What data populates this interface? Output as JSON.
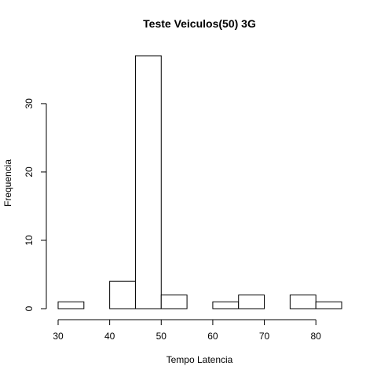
{
  "chart_data": {
    "type": "bar",
    "title": "Teste Veiculos(50) 3G",
    "xlabel": "Tempo Latencia",
    "ylabel": "Frequencia",
    "bins": [
      {
        "start": 30,
        "end": 35,
        "count": 1
      },
      {
        "start": 35,
        "end": 40,
        "count": 0
      },
      {
        "start": 40,
        "end": 45,
        "count": 4
      },
      {
        "start": 45,
        "end": 50,
        "count": 37
      },
      {
        "start": 50,
        "end": 55,
        "count": 2
      },
      {
        "start": 55,
        "end": 60,
        "count": 0
      },
      {
        "start": 60,
        "end": 65,
        "count": 1
      },
      {
        "start": 65,
        "end": 70,
        "count": 2
      },
      {
        "start": 70,
        "end": 75,
        "count": 0
      },
      {
        "start": 75,
        "end": 80,
        "count": 2
      },
      {
        "start": 80,
        "end": 85,
        "count": 1
      }
    ],
    "xlim": [
      30,
      85
    ],
    "ylim": [
      0,
      37
    ],
    "x_ticks": [
      "30",
      "40",
      "50",
      "60",
      "70",
      "80"
    ],
    "y_ticks": [
      "0",
      "10",
      "20",
      "30"
    ],
    "grid": false,
    "bar_fill": "#ffffff",
    "bar_stroke": "#000000"
  }
}
